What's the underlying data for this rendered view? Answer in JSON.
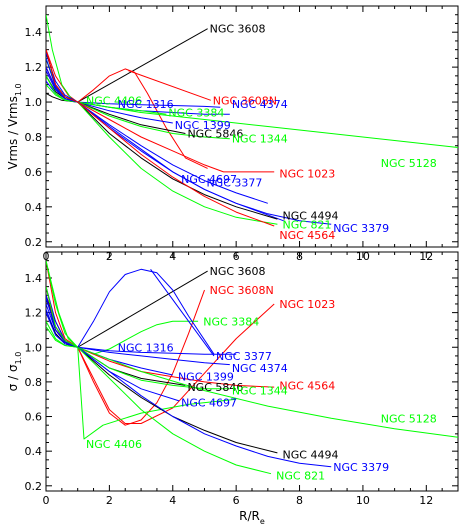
{
  "chart_data": [
    {
      "type": "line",
      "ylabel_main": "Vrms / Vrms",
      "ylabel_sub": "1.0",
      "xlim": [
        0,
        13
      ],
      "ylim": [
        0.17,
        1.55
      ],
      "x_ticks": [
        0,
        2,
        4,
        6,
        8,
        10,
        12
      ],
      "x_tick_labels": [
        "0",
        "2",
        "4",
        "6",
        "8",
        "10",
        "12"
      ],
      "y_ticks": [
        0.2,
        0.4,
        0.6,
        0.8,
        1.0,
        1.2,
        1.4
      ],
      "y_tick_labels": [
        "0.2",
        "0.4",
        "0.6",
        "0.8",
        "1.0",
        "1.2",
        "1.4"
      ],
      "series": [
        {
          "name": "NGC 3608",
          "color": "#000000",
          "label_at": [
            5.1,
            1.42
          ],
          "leader": [
            1.0,
            1.0
          ],
          "x": [
            0.0,
            0.2,
            0.5,
            1.0
          ],
          "y": [
            1.05,
            1.03,
            1.01,
            1.0
          ]
        },
        {
          "name": "NGC 3608N",
          "color": "#ff0000",
          "label_at": [
            5.2,
            1.01
          ],
          "leader": [
            2.6,
            1.18
          ],
          "x": [
            0.0,
            0.3,
            0.7,
            1.0,
            1.5,
            2.0,
            2.5,
            2.8,
            3.2,
            3.8,
            4.4,
            5.1
          ],
          "y": [
            1.3,
            1.15,
            1.04,
            1.0,
            1.07,
            1.15,
            1.19,
            1.17,
            1.05,
            0.85,
            0.68,
            0.62
          ]
        },
        {
          "name": "NGC 4406",
          "color": "#00ff00",
          "label_at": [
            1.2,
            1.01
          ],
          "x": [
            0.0,
            0.2,
            0.5,
            0.8,
            1.0
          ],
          "y": [
            1.5,
            1.3,
            1.1,
            1.02,
            1.0
          ]
        },
        {
          "name": "NGC 1316",
          "color": "#0000ff",
          "label_at": [
            2.2,
            0.99
          ],
          "x": [
            0.0,
            0.3,
            0.6,
            1.0,
            2.0,
            3.0,
            4.0,
            5.0,
            5.5
          ],
          "y": [
            1.28,
            1.12,
            1.04,
            1.0,
            0.99,
            0.985,
            0.98,
            0.975,
            0.97
          ]
        },
        {
          "name": "NGC 4374",
          "color": "#0000ff",
          "label_at": [
            5.8,
            0.99
          ],
          "x": [
            0.0,
            0.3,
            0.6,
            1.0,
            2.0,
            3.0,
            4.0,
            5.0,
            5.8
          ],
          "y": [
            1.2,
            1.08,
            1.02,
            1.0,
            0.97,
            0.95,
            0.94,
            0.93,
            0.93
          ]
        },
        {
          "name": "NGC 3384",
          "color": "#00ff00",
          "label_at": [
            3.8,
            0.94
          ],
          "x": [
            0.0,
            0.3,
            0.6,
            1.0,
            2.0,
            3.0,
            3.8
          ],
          "y": [
            1.25,
            1.1,
            1.03,
            1.0,
            0.97,
            0.95,
            0.93
          ]
        },
        {
          "name": "NGC 1399",
          "color": "#0000ff",
          "label_at": [
            4.0,
            0.87
          ],
          "x": [
            0.0,
            0.3,
            0.6,
            1.0,
            2.0,
            3.0,
            4.0
          ],
          "y": [
            1.12,
            1.05,
            1.01,
            1.0,
            0.95,
            0.91,
            0.88
          ]
        },
        {
          "name": "NGC 5846",
          "color": "#000000",
          "label_at": [
            4.4,
            0.82
          ],
          "x": [
            0.0,
            0.3,
            0.6,
            1.0,
            2.0,
            3.0,
            4.4
          ],
          "y": [
            1.15,
            1.06,
            1.02,
            1.0,
            0.93,
            0.87,
            0.82
          ]
        },
        {
          "name": "NGC 1344",
          "color": "#00ff00",
          "label_at": [
            5.8,
            0.79
          ],
          "x": [
            0.0,
            0.3,
            0.6,
            1.0,
            2.0,
            3.0,
            4.0,
            5.0,
            5.8
          ],
          "y": [
            1.1,
            1.04,
            1.01,
            1.0,
            0.92,
            0.86,
            0.82,
            0.8,
            0.79
          ]
        },
        {
          "name": "NGC 5128",
          "color": "#00ff00",
          "label_at": [
            10.5,
            0.65
          ],
          "x": [
            0.0,
            0.3,
            0.6,
            1.0,
            3.0,
            5.0,
            7.0,
            9.0,
            11.0,
            13.0
          ],
          "y": [
            1.15,
            1.05,
            1.01,
            1.0,
            0.94,
            0.9,
            0.86,
            0.82,
            0.78,
            0.74
          ]
        },
        {
          "name": "NGC 1023",
          "color": "#ff0000",
          "label_at": [
            7.3,
            0.59
          ],
          "x": [
            0.0,
            0.3,
            0.6,
            1.0,
            2.0,
            3.0,
            4.0,
            5.0,
            5.6,
            7.2
          ],
          "y": [
            1.2,
            1.08,
            1.02,
            1.0,
            0.9,
            0.8,
            0.72,
            0.64,
            0.6,
            0.6
          ]
        },
        {
          "name": "NGC 4697",
          "color": "#0000ff",
          "label_at": [
            4.2,
            0.56
          ],
          "x": [
            0.0,
            0.3,
            0.6,
            1.0,
            2.0,
            3.0,
            4.0,
            5.0,
            6.0,
            7.0
          ],
          "y": [
            1.18,
            1.07,
            1.02,
            1.0,
            0.87,
            0.75,
            0.64,
            0.55,
            0.48,
            0.42
          ]
        },
        {
          "name": "NGC 3377",
          "color": "#0000ff",
          "label_at": [
            5.0,
            0.54
          ],
          "x": [
            0.0,
            0.3,
            0.6,
            1.0,
            2.0,
            3.0,
            4.0,
            5.0,
            6.0,
            7.5
          ],
          "y": [
            1.2,
            1.08,
            1.02,
            1.0,
            0.85,
            0.72,
            0.6,
            0.5,
            0.42,
            0.32
          ]
        },
        {
          "name": "NGC 4494",
          "color": "#000000",
          "label_at": [
            7.4,
            0.35
          ],
          "x": [
            0.0,
            0.3,
            0.6,
            1.0,
            2.0,
            3.0,
            4.0,
            5.0,
            6.0,
            7.3
          ],
          "y": [
            1.3,
            1.1,
            1.03,
            1.0,
            0.82,
            0.68,
            0.56,
            0.47,
            0.4,
            0.33
          ]
        },
        {
          "name": "NGC 821",
          "color": "#00ff00",
          "label_at": [
            7.4,
            0.3
          ],
          "x": [
            0.0,
            0.3,
            0.6,
            1.0,
            2.0,
            3.0,
            4.0,
            5.0,
            6.0,
            7.3
          ],
          "y": [
            1.25,
            1.09,
            1.02,
            1.0,
            0.8,
            0.62,
            0.49,
            0.4,
            0.34,
            0.3
          ]
        },
        {
          "name": "NGC 3379",
          "color": "#0000ff",
          "label_at": [
            9.0,
            0.28
          ],
          "x": [
            0.0,
            0.3,
            0.6,
            1.0,
            2.0,
            3.0,
            4.0,
            5.0,
            6.0,
            7.0,
            8.0,
            9.0
          ],
          "y": [
            1.25,
            1.09,
            1.02,
            1.0,
            0.86,
            0.73,
            0.6,
            0.5,
            0.42,
            0.36,
            0.32,
            0.3
          ]
        },
        {
          "name": "NGC 4564",
          "color": "#ff0000",
          "label_at": [
            7.3,
            0.24
          ],
          "x": [
            0.0,
            0.3,
            0.6,
            1.0,
            2.0,
            3.0,
            4.0,
            5.0,
            6.0,
            7.2
          ],
          "y": [
            1.3,
            1.1,
            1.03,
            1.0,
            0.85,
            0.7,
            0.57,
            0.46,
            0.37,
            0.29
          ]
        }
      ]
    },
    {
      "type": "line",
      "ylabel_main": "σ / σ",
      "ylabel_sub": "1.0",
      "xlabel_main": "R/R",
      "xlabel_sub": "e",
      "xlim": [
        0,
        13
      ],
      "ylim": [
        0.17,
        1.55
      ],
      "x_ticks": [
        0,
        2,
        4,
        6,
        8,
        10,
        12
      ],
      "x_tick_labels": [
        "0",
        "2",
        "4",
        "6",
        "8",
        "10",
        "12"
      ],
      "y_ticks": [
        0.2,
        0.4,
        0.6,
        0.8,
        1.0,
        1.2,
        1.4
      ],
      "y_tick_labels": [
        "0.2",
        "0.4",
        "0.6",
        "0.8",
        "1.0",
        "1.2",
        "1.4"
      ],
      "series": [
        {
          "name": "NGC 3608",
          "color": "#000000",
          "label_at": [
            5.1,
            1.44
          ],
          "leader": [
            1.0,
            1.0
          ],
          "x": [
            0.0,
            0.3,
            0.6,
            1.0
          ],
          "y": [
            1.3,
            1.15,
            1.04,
            1.0
          ]
        },
        {
          "name": "NGC 3608N",
          "color": "#ff0000",
          "label_at": [
            5.1,
            1.33
          ],
          "x": [
            0.0,
            0.3,
            0.6,
            1.0,
            1.5,
            2.0,
            2.5,
            3.0,
            3.5,
            4.0,
            4.5,
            5.0
          ],
          "y": [
            1.5,
            1.2,
            1.05,
            1.0,
            0.8,
            0.62,
            0.55,
            0.58,
            0.68,
            0.85,
            1.08,
            1.33
          ]
        },
        {
          "name": "NGC 3384",
          "color": "#00ff00",
          "label_at": [
            4.9,
            1.15
          ],
          "x": [
            0.0,
            0.3,
            0.6,
            1.0,
            1.5,
            2.0,
            2.5,
            3.0,
            3.5,
            4.0,
            4.8
          ],
          "y": [
            1.5,
            1.25,
            1.08,
            1.0,
            0.96,
            0.99,
            1.04,
            1.09,
            1.13,
            1.15,
            1.15
          ]
        },
        {
          "name": "NGC 1023",
          "color": "#ff0000",
          "label_at": [
            7.3,
            1.25
          ],
          "x": [
            0.0,
            0.3,
            0.6,
            1.0,
            1.5,
            2.0,
            2.5,
            3.0,
            4.0,
            5.0,
            6.0,
            7.2
          ],
          "y": [
            1.3,
            1.12,
            1.03,
            1.0,
            0.82,
            0.64,
            0.56,
            0.56,
            0.65,
            0.85,
            1.05,
            1.25
          ]
        },
        {
          "name": "NGC 1316",
          "color": "#0000ff",
          "label_at": [
            2.2,
            1.0
          ],
          "x": [
            0.0,
            0.3,
            0.6,
            1.0,
            2.0,
            3.0,
            4.0,
            5.0,
            6.0
          ],
          "y": [
            1.35,
            1.15,
            1.04,
            1.0,
            0.98,
            0.97,
            0.965,
            0.96,
            0.96
          ]
        },
        {
          "name": "NGC 3377",
          "color": "#0000ff",
          "label_at": [
            5.3,
            0.95
          ],
          "leader": [
            3.3,
            1.45
          ],
          "x": [
            0.0,
            0.3,
            0.6,
            1.0,
            1.5,
            2.0,
            2.5,
            3.0,
            3.5,
            4.0,
            4.5,
            5.3
          ],
          "y": [
            1.28,
            1.12,
            1.03,
            1.0,
            1.15,
            1.32,
            1.42,
            1.45,
            1.43,
            1.33,
            1.18,
            0.96
          ]
        },
        {
          "name": "NGC 4374",
          "color": "#0000ff",
          "label_at": [
            5.8,
            0.88
          ],
          "x": [
            0.0,
            0.3,
            0.6,
            1.0,
            2.0,
            3.0,
            4.0,
            5.0,
            5.8
          ],
          "y": [
            1.25,
            1.1,
            1.03,
            1.0,
            0.97,
            0.95,
            0.93,
            0.91,
            0.9
          ]
        },
        {
          "name": "NGC 1399",
          "color": "#0000ff",
          "label_at": [
            4.1,
            0.83
          ],
          "x": [
            0.0,
            0.3,
            0.6,
            1.0,
            2.0,
            3.0,
            4.0
          ],
          "y": [
            1.22,
            1.08,
            1.02,
            1.0,
            0.93,
            0.88,
            0.84
          ]
        },
        {
          "name": "NGC 4564",
          "color": "#ff0000",
          "label_at": [
            7.3,
            0.78
          ],
          "x": [
            0.0,
            0.3,
            0.6,
            1.0,
            2.0,
            3.0,
            4.0,
            5.0,
            6.0,
            7.2
          ],
          "y": [
            1.35,
            1.12,
            1.04,
            1.0,
            0.92,
            0.86,
            0.83,
            0.8,
            0.78,
            0.77
          ]
        },
        {
          "name": "NGC 5846",
          "color": "#000000",
          "label_at": [
            4.4,
            0.77
          ],
          "x": [
            0.0,
            0.3,
            0.6,
            1.0,
            2.0,
            3.0,
            4.4
          ],
          "y": [
            1.2,
            1.08,
            1.02,
            1.0,
            0.88,
            0.82,
            0.78
          ]
        },
        {
          "name": "NGC 1344",
          "color": "#00ff00",
          "label_at": [
            5.8,
            0.75
          ],
          "x": [
            0.0,
            0.3,
            0.6,
            1.0,
            2.0,
            3.0,
            4.0,
            5.0,
            5.8
          ],
          "y": [
            1.12,
            1.04,
            1.01,
            1.0,
            0.88,
            0.81,
            0.78,
            0.76,
            0.76
          ]
        },
        {
          "name": "NGC 4697",
          "color": "#0000ff",
          "label_at": [
            4.2,
            0.68
          ],
          "x": [
            0.0,
            0.3,
            0.6,
            1.0,
            2.0,
            3.0,
            4.2
          ],
          "y": [
            1.2,
            1.07,
            1.02,
            1.0,
            0.86,
            0.76,
            0.69
          ]
        },
        {
          "name": "NGC 5128",
          "color": "#00ff00",
          "label_at": [
            10.5,
            0.59
          ],
          "x": [
            0.0,
            0.3,
            0.6,
            1.0,
            3.0,
            5.0,
            7.0,
            9.0,
            11.0,
            13.0
          ],
          "y": [
            1.15,
            1.05,
            1.01,
            1.0,
            0.86,
            0.75,
            0.66,
            0.59,
            0.53,
            0.48
          ]
        },
        {
          "name": "NGC 4406",
          "color": "#00ff00",
          "label_at": [
            1.2,
            0.44
          ],
          "x": [
            0.0,
            0.2,
            0.4,
            0.7,
            1.0,
            1.2,
            1.8,
            3.0,
            4.5,
            6.0
          ],
          "y": [
            1.5,
            1.35,
            1.2,
            1.05,
            1.0,
            0.47,
            0.55,
            0.62,
            0.67,
            0.7
          ]
        },
        {
          "name": "NGC 4494",
          "color": "#000000",
          "label_at": [
            7.4,
            0.38
          ],
          "x": [
            0.0,
            0.3,
            0.6,
            1.0,
            2.0,
            3.0,
            4.0,
            5.0,
            6.0,
            7.3
          ],
          "y": [
            1.3,
            1.1,
            1.03,
            1.0,
            0.84,
            0.71,
            0.6,
            0.52,
            0.45,
            0.39
          ]
        },
        {
          "name": "NGC 3379",
          "color": "#0000ff",
          "label_at": [
            9.0,
            0.31
          ],
          "x": [
            0.0,
            0.3,
            0.6,
            1.0,
            2.0,
            3.0,
            4.0,
            5.0,
            6.0,
            7.0,
            8.0,
            9.0
          ],
          "y": [
            1.3,
            1.1,
            1.03,
            1.0,
            0.86,
            0.72,
            0.6,
            0.5,
            0.43,
            0.37,
            0.33,
            0.31
          ]
        },
        {
          "name": "NGC 821",
          "color": "#00ff00",
          "label_at": [
            7.2,
            0.26
          ],
          "x": [
            0.0,
            0.3,
            0.6,
            1.0,
            2.0,
            3.0,
            4.0,
            5.0,
            6.0,
            7.1
          ],
          "y": [
            1.35,
            1.12,
            1.04,
            1.0,
            0.82,
            0.64,
            0.5,
            0.4,
            0.32,
            0.27
          ]
        }
      ]
    }
  ]
}
